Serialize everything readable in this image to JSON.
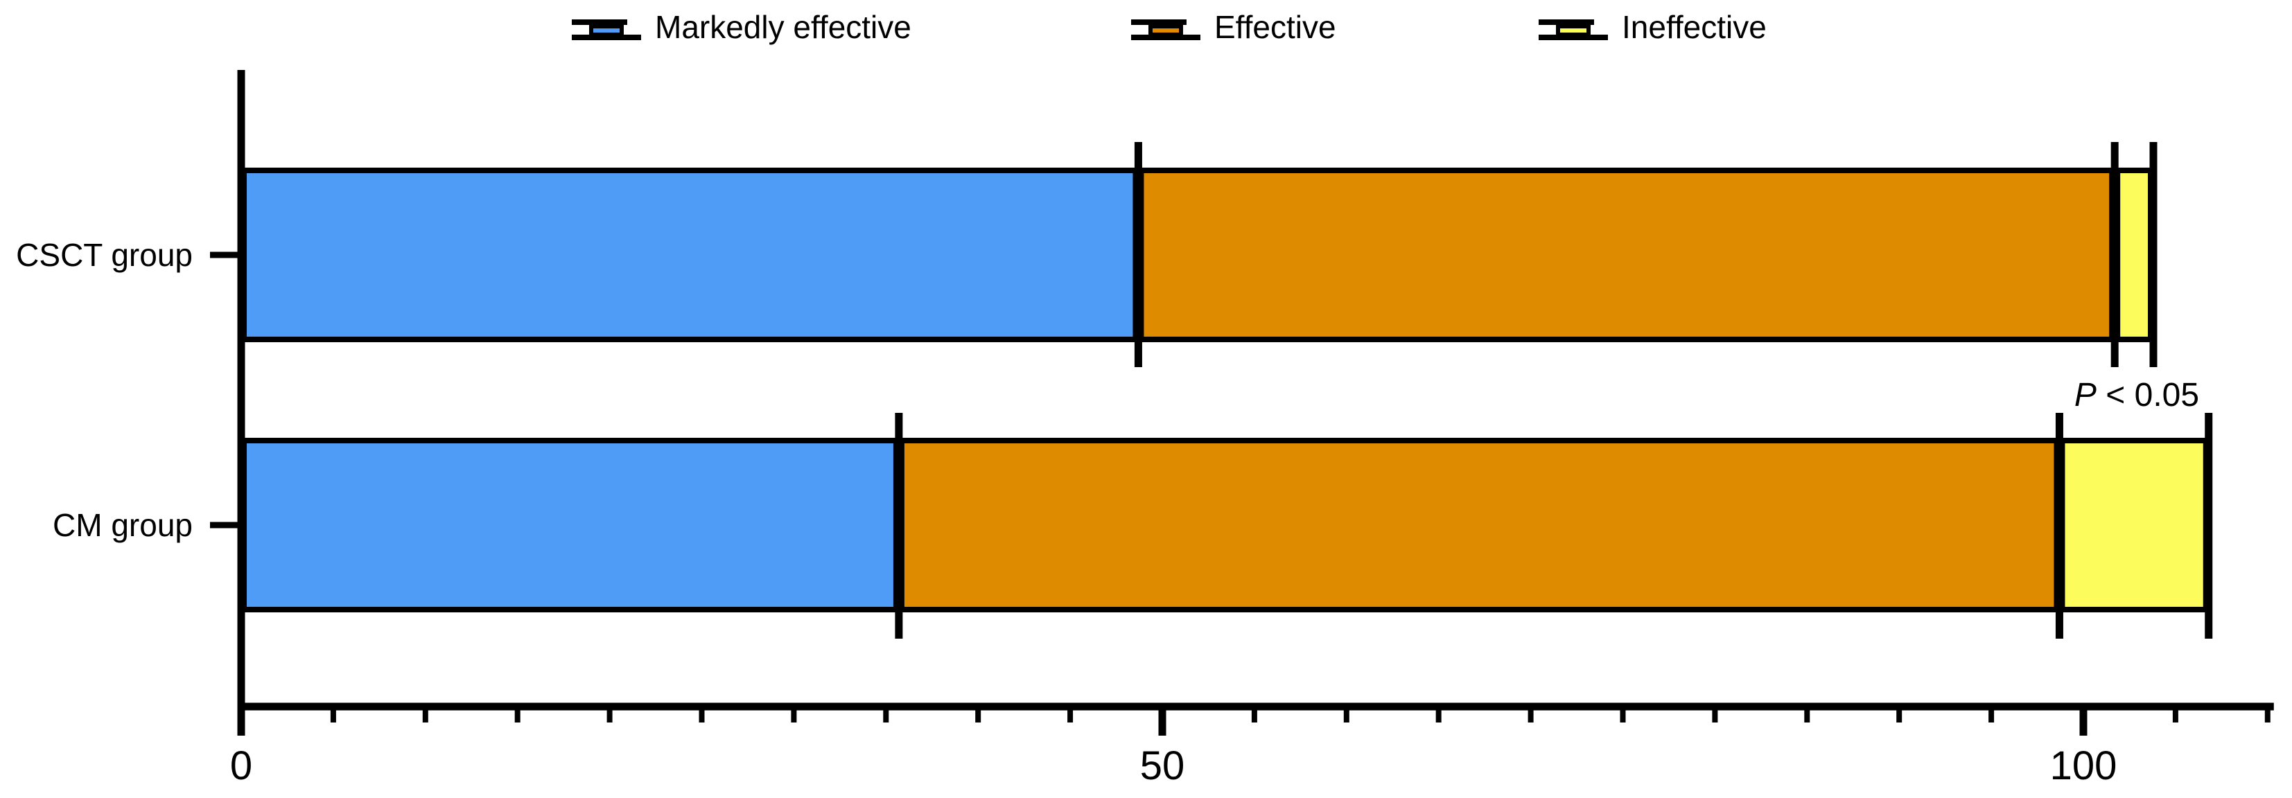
{
  "figure": {
    "background": "#ffffff",
    "axis_color": "#000000"
  },
  "chart_data": {
    "type": "bar",
    "subtype": "horizontal_stacked_bar",
    "title": "",
    "xlabel": "",
    "ylabel": "",
    "categories": [
      "CSCT group",
      "CM group"
    ],
    "series": [
      {
        "name": "Markedly effective",
        "color": "#4F9CF6",
        "values": [
          48.7,
          35.7
        ]
      },
      {
        "name": "Effective",
        "color": "#DE8B00",
        "values": [
          53.0,
          63.0
        ]
      },
      {
        "name": "Ineffective",
        "color": "#FCFC5C",
        "values": [
          2.1,
          8.1
        ]
      }
    ],
    "cumulative_boundaries": {
      "CSCT group": [
        48.7,
        101.7,
        103.8
      ],
      "CM group": [
        35.7,
        98.7,
        106.8
      ]
    },
    "xlim": [
      0,
      110
    ],
    "xticks_major": [
      {
        "value": 0,
        "label": "0"
      },
      {
        "value": 50,
        "label": "50"
      },
      {
        "value": 100,
        "label": "100"
      }
    ],
    "xtick_minor_step": 5,
    "grid": false,
    "legend_position": "top",
    "error_whiskers_at_segment_boundaries": true,
    "annotation": {
      "text": "P < 0.05",
      "italic_part": "P",
      "rest_part": " < 0.05"
    }
  }
}
